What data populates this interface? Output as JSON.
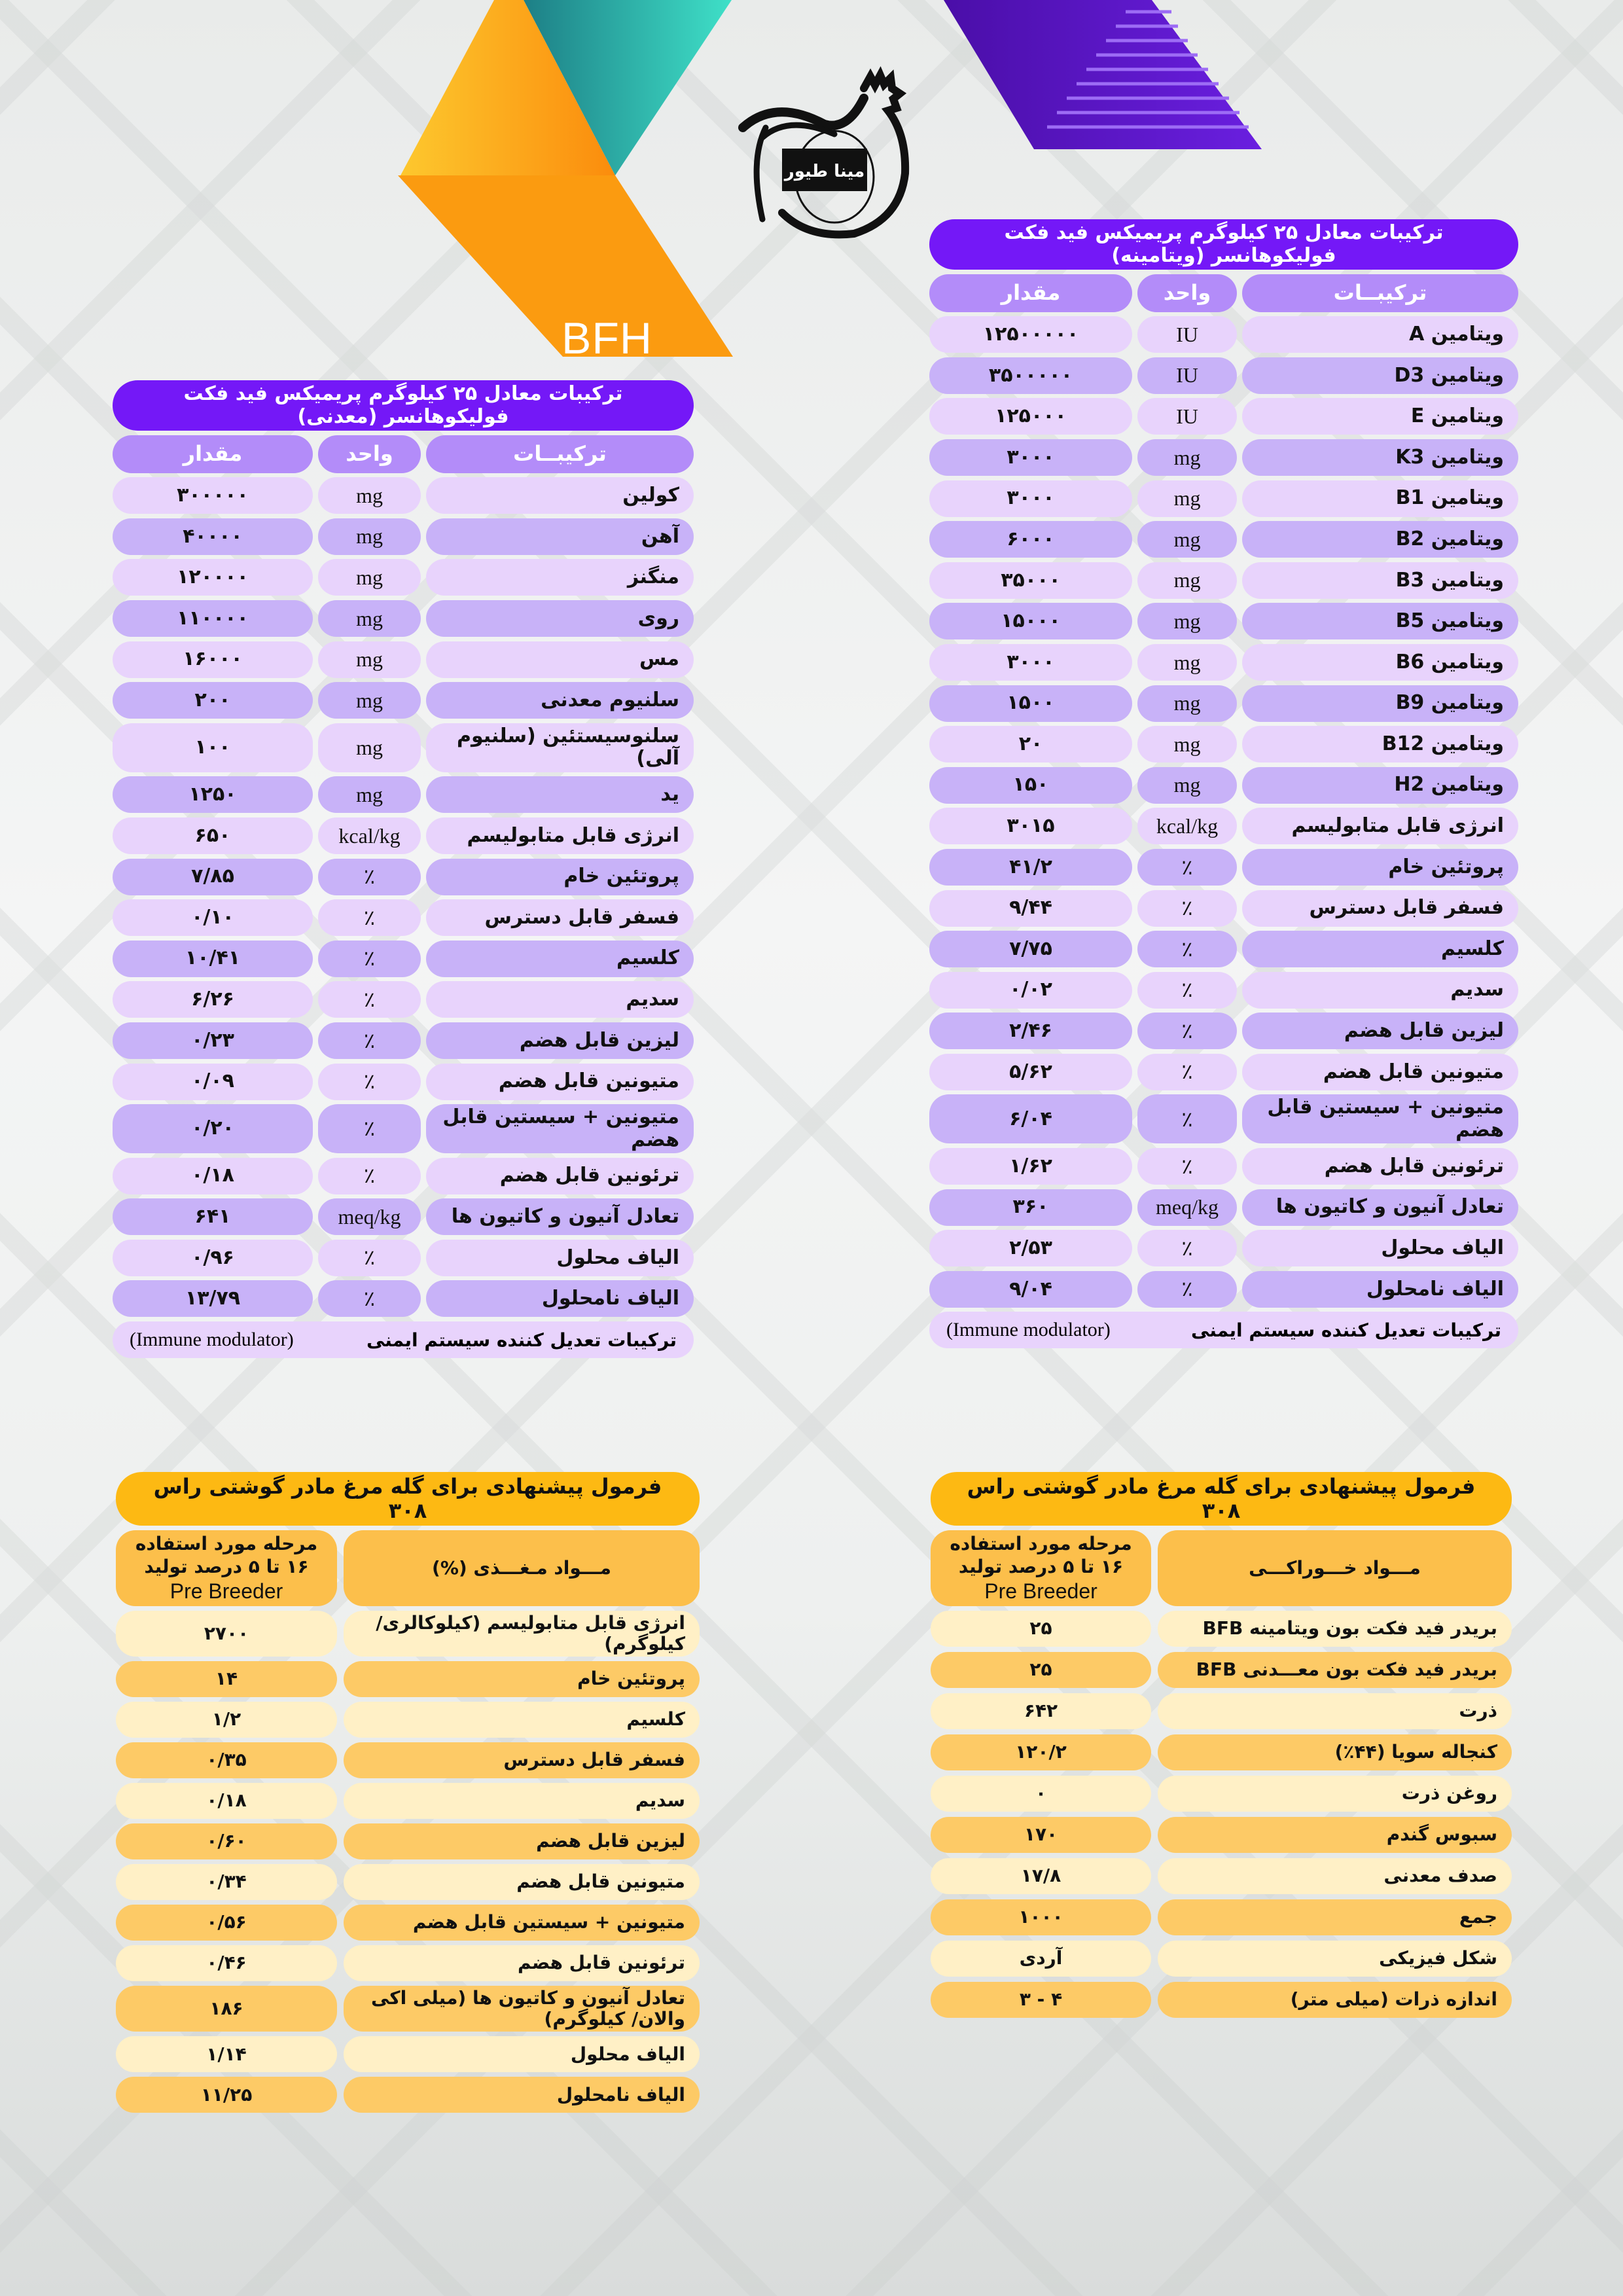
{
  "brand": {
    "label": "BFH",
    "logo_text": "مینا طیور"
  },
  "colors": {
    "purple_title": "#7418f7",
    "purple_header": "#b38cf9",
    "purple_light": "#e8d3fc",
    "purple_mid": "#c8b2f8",
    "yellow_title": "#fdb913",
    "yellow_header": "#fcbf4b",
    "yellow_light": "#fff0c6",
    "yellow_mid": "#fdca66"
  },
  "vitamin_table": {
    "title": "ترکیبات معادل ۲۵ کیلوگرم پریمیکس فید فکت فولیکوهانسر (ویتامینه)",
    "headers": [
      "ترکیبــات",
      "واحد",
      "مقدار"
    ],
    "rows": [
      [
        "ویتامین A",
        "IU",
        "۱۲۵۰۰۰۰۰"
      ],
      [
        "ویتامین D3",
        "IU",
        "۳۵۰۰۰۰۰"
      ],
      [
        "ویتامین E",
        "IU",
        "۱۲۵۰۰۰"
      ],
      [
        "ویتامین K3",
        "mg",
        "۳۰۰۰"
      ],
      [
        "ویتامین B1",
        "mg",
        "۳۰۰۰"
      ],
      [
        "ویتامین B2",
        "mg",
        "۶۰۰۰"
      ],
      [
        "ویتامین B3",
        "mg",
        "۳۵۰۰۰"
      ],
      [
        "ویتامین B5",
        "mg",
        "۱۵۰۰۰"
      ],
      [
        "ویتامین B6",
        "mg",
        "۳۰۰۰"
      ],
      [
        "ویتامین B9",
        "mg",
        "۱۵۰۰"
      ],
      [
        "ویتامین B12",
        "mg",
        "۲۰"
      ],
      [
        "ویتامین H2",
        "mg",
        "۱۵۰"
      ],
      [
        "انرژی قابل متابولیسم",
        "kcal/kg",
        "۳۰۱۵"
      ],
      [
        "پروتئین خام",
        "٪",
        "۴۱/۲"
      ],
      [
        "فسفر قابل دسترس",
        "٪",
        "۹/۴۴"
      ],
      [
        "کلسیم",
        "٪",
        "۷/۷۵"
      ],
      [
        "سدیم",
        "٪",
        "۰/۰۲"
      ],
      [
        "لیزین قابل هضم",
        "٪",
        "۲/۴۶"
      ],
      [
        "متیونین قابل هضم",
        "٪",
        "۵/۶۲"
      ],
      [
        "متیونین + سیستین قابل هضم",
        "٪",
        "۶/۰۴"
      ],
      [
        "ترئونین قابل هضم",
        "٪",
        "۱/۶۲"
      ],
      [
        "تعادل آنیون و کاتیون ها",
        "meq/kg",
        "۳۶۰"
      ],
      [
        "الیاف محلول",
        "٪",
        "۲/۵۳"
      ],
      [
        "الیاف نامحلول",
        "٪",
        "۹/۰۴"
      ]
    ],
    "footer": {
      "fa": "ترکیبات تعدیل کننده سیستم ایمنی",
      "en": "(Immune modulator)"
    }
  },
  "mineral_table": {
    "title": "ترکیبات معادل ۲۵ کیلوگرم پریمیکس فید فکت فولیکوهانسر (معدنی)",
    "headers": [
      "ترکیبــات",
      "واحد",
      "مقدار"
    ],
    "rows": [
      [
        "کولین",
        "mg",
        "۳۰۰۰۰۰"
      ],
      [
        "آهن",
        "mg",
        "۴۰۰۰۰"
      ],
      [
        "منگنز",
        "mg",
        "۱۲۰۰۰۰"
      ],
      [
        "روی",
        "mg",
        "۱۱۰۰۰۰"
      ],
      [
        "مس",
        "mg",
        "۱۶۰۰۰"
      ],
      [
        "سلنیوم معدنی",
        "mg",
        "۲۰۰"
      ],
      [
        "سلنوسیستئین (سلنیوم آلی)",
        "mg",
        "۱۰۰"
      ],
      [
        "ید",
        "mg",
        "۱۲۵۰"
      ],
      [
        "انرژی قابل متابولیسم",
        "kcal/kg",
        "۶۵۰"
      ],
      [
        "پروتئین خام",
        "٪",
        "۷/۸۵"
      ],
      [
        "فسفر قابل دسترس",
        "٪",
        "۰/۱۰"
      ],
      [
        "کلسیم",
        "٪",
        "۱۰/۴۱"
      ],
      [
        "سدیم",
        "٪",
        "۶/۲۶"
      ],
      [
        "لیزین قابل هضم",
        "٪",
        "۰/۲۳"
      ],
      [
        "متیونین قابل هضم",
        "٪",
        "۰/۰۹"
      ],
      [
        "متیونین + سیستین قابل هضم",
        "٪",
        "۰/۲۰"
      ],
      [
        "ترئونین قابل هضم",
        "٪",
        "۰/۱۸"
      ],
      [
        "تعادل آنیون و کاتیون ها",
        "meq/kg",
        "۶۴۱"
      ],
      [
        "الیاف محلول",
        "٪",
        "۰/۹۶"
      ],
      [
        "الیاف نامحلول",
        "٪",
        "۱۳/۷۹"
      ]
    ],
    "footer": {
      "fa": "ترکیبات تعدیل کننده سیستم ایمنی",
      "en": "(Immune modulator)"
    }
  },
  "feed_formula": {
    "title": "فرمول پیشنهادی برای گله مرغ مادر گوشتی راس ۳۰۸",
    "header_name": "مـــواد خـــوراکـــی",
    "header_stage": [
      "مرحله مورد استفاده",
      "۱۶ تا ۵ درصد تولید",
      "Pre Breeder"
    ],
    "rows": [
      [
        "بریدر فید فکت بون ویتامینه BFB",
        "۲۵"
      ],
      [
        "بریدر فید فکت بون معـــدنی BFB",
        "۲۵"
      ],
      [
        "ذرت",
        "۶۴۲"
      ],
      [
        "کنجاله سویا (۴۴٪)",
        "۱۲۰/۲"
      ],
      [
        "روغن ذرت",
        "۰"
      ],
      [
        "سبوس گندم",
        "۱۷۰"
      ],
      [
        "صدف معدنی",
        "۱۷/۸"
      ],
      [
        "جمع",
        "۱۰۰۰"
      ],
      [
        "شکل فیزیکی",
        "آردی"
      ],
      [
        "اندازه ذرات (میلی متر)",
        "۴ - ۳"
      ]
    ]
  },
  "nutrient_formula": {
    "title": "فرمول پیشنهادی برای گله مرغ مادر گوشتی راس ۳۰۸",
    "header_name": "مـــواد مـغـــذی (%)",
    "header_stage": [
      "مرحله مورد استفاده",
      "۱۶ تا ۵ درصد تولید",
      "Pre Breeder"
    ],
    "rows": [
      [
        "انرژی قابل متابولیسم (کیلوکالری/کیلوگرم)",
        "۲۷۰۰"
      ],
      [
        "پروتئین خام",
        "۱۴"
      ],
      [
        "کلسیم",
        "۱/۲"
      ],
      [
        "فسفر قابل دسترس",
        "۰/۳۵"
      ],
      [
        "سدیم",
        "۰/۱۸"
      ],
      [
        "لیزین قابل هضم",
        "۰/۶۰"
      ],
      [
        "متیونین قابل هضم",
        "۰/۳۴"
      ],
      [
        "متیونین + سیستین قابل هضم",
        "۰/۵۶"
      ],
      [
        "ترئونین قابل هضم",
        "۰/۴۶"
      ],
      [
        "تعادل آنیون و کاتیون ها (میلی اکی والان/ کیلوگرم)",
        "۱۸۶"
      ],
      [
        "الیاف محلول",
        "۱/۱۴"
      ],
      [
        "الیاف نامحلول",
        "۱۱/۲۵"
      ]
    ]
  }
}
